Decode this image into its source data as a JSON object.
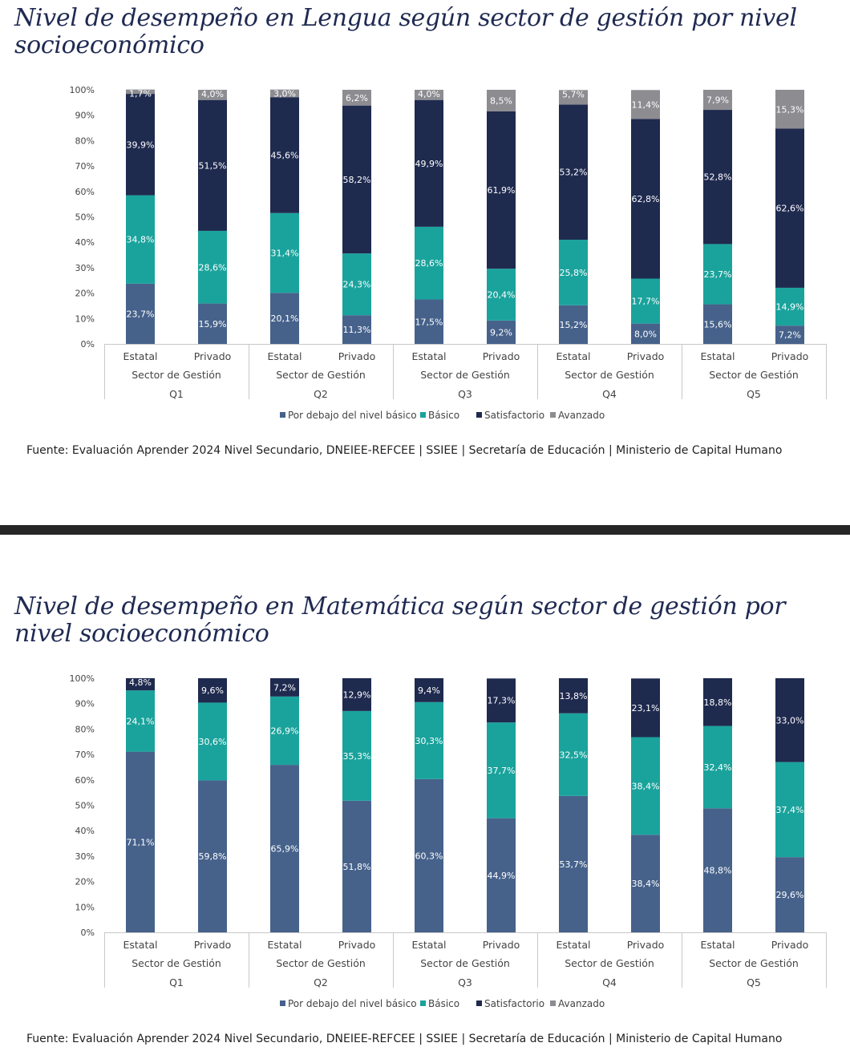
{
  "panels": [
    {
      "title": "Nivel de desempeño en Lengua según sector de gestión por nivel socioeconómico",
      "source": "Fuente: Evaluación Aprender 2024 Nivel Secundario, DNEIEE-REFCEE | SSIEE | Secretaría de Educación | Ministerio de Capital Humano"
    },
    {
      "title": "Nivel de desempeño en Matemática según sector de gestión por nivel socioeconómico",
      "source": "Fuente: Evaluación Aprender 2024 Nivel Secundario, DNEIEE-REFCEE | SSIEE | Secretaría de Educación | Ministerio de Capital Humano"
    }
  ],
  "colors": {
    "Por debajo del nivel básico": "#46628b",
    "Básico": "#1aa39c",
    "Satisfactorio": "#1f2a4f",
    "Avanzado": "#8c8c91"
  },
  "chart_data": [
    {
      "type": "bar",
      "stacked": true,
      "ylim": [
        0,
        100
      ],
      "yticks": [
        "0%",
        "10%",
        "20%",
        "30%",
        "40%",
        "50%",
        "60%",
        "70%",
        "80%",
        "90%",
        "100%"
      ],
      "legend_position": "bottom",
      "categories": [
        "Estatal",
        "Privado",
        "Estatal",
        "Privado",
        "Estatal",
        "Privado",
        "Estatal",
        "Privado",
        "Estatal",
        "Privado"
      ],
      "group_sublabel": "Sector de Gestión",
      "groups": [
        "Q1",
        "Q2",
        "Q3",
        "Q4",
        "Q5"
      ],
      "series": [
        {
          "name": "Por debajo del nivel básico",
          "values": [
            23.7,
            15.9,
            20.1,
            11.3,
            17.5,
            9.2,
            15.2,
            8.0,
            15.6,
            7.2
          ]
        },
        {
          "name": "Básico",
          "values": [
            34.8,
            28.6,
            31.4,
            24.3,
            28.6,
            20.4,
            25.8,
            17.7,
            23.7,
            14.9
          ]
        },
        {
          "name": "Satisfactorio",
          "values": [
            39.9,
            51.5,
            45.6,
            58.2,
            49.9,
            61.9,
            53.2,
            62.8,
            52.8,
            62.6
          ]
        },
        {
          "name": "Avanzado",
          "values": [
            1.7,
            4.0,
            3.0,
            6.2,
            4.0,
            8.5,
            5.7,
            11.4,
            7.9,
            15.3
          ]
        }
      ],
      "labels": [
        [
          "23,7%",
          "15,9%",
          "20,1%",
          "11,3%",
          "17,5%",
          "9,2%",
          "15,2%",
          "8,0%",
          "15,6%",
          "7,2%"
        ],
        [
          "34,8%",
          "28,6%",
          "31,4%",
          "24,3%",
          "28,6%",
          "20,4%",
          "25,8%",
          "17,7%",
          "23,7%",
          "14,9%"
        ],
        [
          "39,9%",
          "51,5%",
          "45,6%",
          "58,2%",
          "49,9%",
          "61,9%",
          "53,2%",
          "62,8%",
          "52,8%",
          "62,6%"
        ],
        [
          "1,7%",
          "4,0%",
          "3,0%",
          "6,2%",
          "4,0%",
          "8,5%",
          "5,7%",
          "11,4%",
          "7,9%",
          "15,3%"
        ]
      ]
    },
    {
      "type": "bar",
      "stacked": true,
      "ylim": [
        0,
        100
      ],
      "yticks": [
        "0%",
        "10%",
        "20%",
        "30%",
        "40%",
        "50%",
        "60%",
        "70%",
        "80%",
        "90%",
        "100%"
      ],
      "legend_position": "bottom",
      "categories": [
        "Estatal",
        "Privado",
        "Estatal",
        "Privado",
        "Estatal",
        "Privado",
        "Estatal",
        "Privado",
        "Estatal",
        "Privado"
      ],
      "group_sublabel": "Sector de Gestión",
      "groups": [
        "Q1",
        "Q2",
        "Q3",
        "Q4",
        "Q5"
      ],
      "series": [
        {
          "name": "Por debajo del nivel básico",
          "values": [
            71.1,
            59.8,
            65.9,
            51.8,
            60.3,
            44.9,
            53.7,
            38.4,
            48.8,
            29.6
          ]
        },
        {
          "name": "Básico",
          "values": [
            24.1,
            30.6,
            26.9,
            35.3,
            30.3,
            37.7,
            32.5,
            38.4,
            32.4,
            37.4
          ]
        },
        {
          "name": "Satisfactorio",
          "values": [
            4.8,
            9.6,
            7.2,
            12.9,
            9.4,
            17.3,
            13.8,
            23.1,
            18.8,
            33.0
          ]
        },
        {
          "name": "Avanzado",
          "values": [
            0,
            0,
            0,
            0,
            0,
            0,
            0,
            0,
            0,
            0
          ]
        }
      ],
      "labels": [
        [
          "71,1%",
          "59,8%",
          "65,9%",
          "51,8%",
          "60,3%",
          "44,9%",
          "53,7%",
          "38,4%",
          "48,8%",
          "29,6%"
        ],
        [
          "24,1%",
          "30,6%",
          "26,9%",
          "35,3%",
          "30,3%",
          "37,7%",
          "32,5%",
          "38,4%",
          "32,4%",
          "37,4%"
        ],
        [
          "4,8%",
          "9,6%",
          "7,2%",
          "12,9%",
          "9,4%",
          "17,3%",
          "13,8%",
          "23,1%",
          "18,8%",
          "33,0%"
        ],
        [
          "",
          "",
          "",
          "",
          "",
          "",
          "",
          "",
          "",
          ""
        ]
      ]
    }
  ]
}
